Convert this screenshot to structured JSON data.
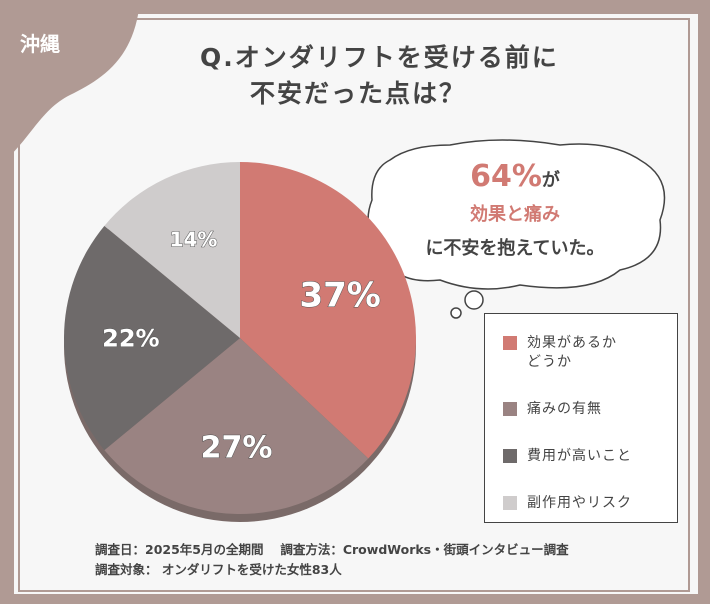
{
  "region": "沖縄",
  "title": {
    "line1": "Q.オンダリフトを受ける前に",
    "line2": "不安だった点は？"
  },
  "callout": {
    "pct": "64%",
    "ga": "が",
    "highlight": "効果と痛み",
    "rest": "に不安を抱えていた。"
  },
  "chart_data": {
    "type": "pie",
    "title": "Q.オンダリフトを受ける前に不安だった点は？",
    "categories": [
      "効果があるかどうか",
      "痛みの有無",
      "費用が高いこと",
      "副作用やリスク"
    ],
    "values": [
      37,
      27,
      22,
      14
    ],
    "labels": [
      "37%",
      "27%",
      "22%",
      "14%"
    ],
    "colors": [
      "#d17a73",
      "#9a8382",
      "#6e6a6a",
      "#cfcccc"
    ],
    "legend": "right"
  },
  "legend": [
    {
      "l1": "効果があるか",
      "l2": "どうか"
    },
    {
      "l1": "痛みの有無"
    },
    {
      "l1": "費用が高いこと"
    },
    {
      "l1": "副作用やリスク"
    }
  ],
  "footer": {
    "line1": "調査日：2025年5月の全期間　 調査方法：CrowdWorks・街頭インタビュー調査",
    "line2": "調査対象： オンダリフトを受けた女性83人"
  }
}
